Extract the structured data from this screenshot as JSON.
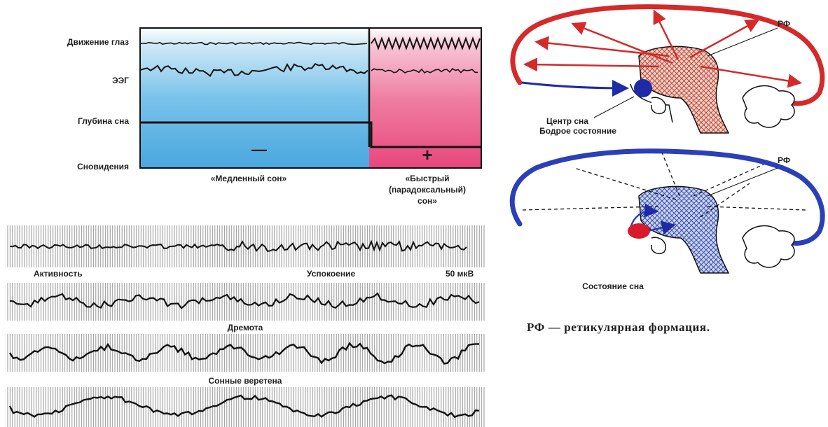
{
  "sleep_phase_panel": {
    "row_labels": {
      "eye_movement": "Движение глаз",
      "eeg": "ЭЭГ",
      "sleep_depth": "Глубина сна",
      "dreams": "Сновидения"
    },
    "slow_sleep": {
      "label": "«Медленный сон»",
      "dream_sign": "—",
      "color": "#4aa7df"
    },
    "fast_sleep": {
      "label_lines": [
        "«Быстрый",
        "(парадоксальный)",
        "сон»"
      ],
      "dream_sign": "+",
      "color": "#e8477c"
    }
  },
  "eeg_panel": {
    "labels": {
      "activity": "Активность",
      "calm": "Успокоение",
      "scale": "50 мкВ",
      "drowsiness": "Дремота",
      "sleep_spindles": "Сонные веретена"
    }
  },
  "brain_diagrams": {
    "awake": {
      "rf_label": "РФ",
      "center_label": "Центр сна",
      "state_label": "Бодрое состояние",
      "accent": "#d42a2a",
      "center_color": "#1e2aa6"
    },
    "sleep": {
      "rf_label": "РФ",
      "state_label": "Состояние сна",
      "accent": "#2a3fb8",
      "center_color": "#d91a2a"
    }
  },
  "legend": {
    "text": "РФ — ретикулярная формация."
  }
}
